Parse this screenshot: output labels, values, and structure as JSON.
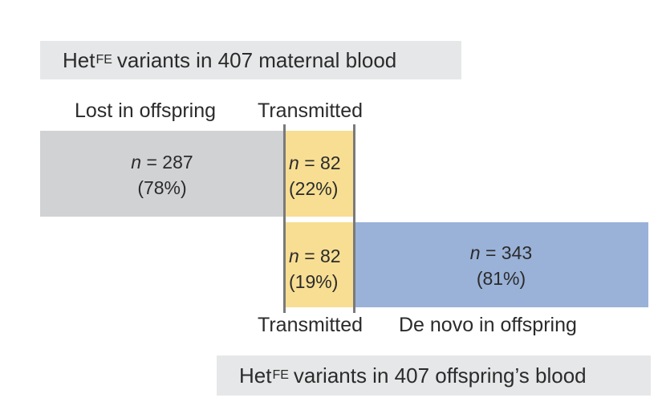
{
  "colors": {
    "header_bg": "#e6e7e8",
    "lost_block": "#d1d2d4",
    "transmitted_block": "#f7de93",
    "de_novo_block": "#9ab2d8",
    "divider_line": "#7a7a7a"
  },
  "maternal_header": {
    "prefix": "Het",
    "subscript": "FE",
    "suffix": "variants in 407 maternal blood"
  },
  "offspring_header": {
    "prefix": "Het",
    "subscript": "FE",
    "suffix": "variants in 407 offspring’s blood"
  },
  "labels": {
    "lost": "Lost in offspring",
    "transmitted_top": "Transmitted",
    "transmitted_bottom": "Transmitted",
    "de_novo": "De novo in offspring"
  },
  "blocks": {
    "lost": {
      "n_symbol": "n",
      "n_value": "= 287",
      "percent": "(78%)"
    },
    "transmitted_maternal": {
      "n_symbol": "n",
      "n_value": "= 82",
      "percent": "(22%)"
    },
    "transmitted_offspring": {
      "n_symbol": "n",
      "n_value": "= 82",
      "percent": "(19%)"
    },
    "de_novo": {
      "n_symbol": "n",
      "n_value": "= 343",
      "percent": "(81%)"
    }
  }
}
